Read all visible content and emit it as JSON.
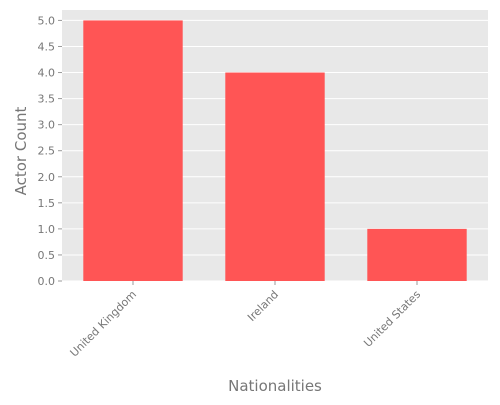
{
  "chart_data": {
    "type": "bar",
    "categories": [
      "United Kingdom",
      "Ireland",
      "United States"
    ],
    "values": [
      5,
      4,
      1
    ],
    "xlabel": "Nationalities",
    "ylabel": "Actor Count",
    "ylim": [
      0,
      5.2
    ],
    "yticks": [
      0.0,
      0.5,
      1.0,
      1.5,
      2.0,
      2.5,
      3.0,
      3.5,
      4.0,
      4.5,
      5.0
    ],
    "ytick_labels": [
      "0.0",
      "0.5",
      "1.0",
      "1.5",
      "2.0",
      "2.5",
      "3.0",
      "3.5",
      "4.0",
      "4.5",
      "5.0"
    ],
    "grid": true,
    "bar_color": "#ff5555",
    "plot_background": "#e8e8e8",
    "grid_color": "#ffffff",
    "text_color": "#777777"
  }
}
